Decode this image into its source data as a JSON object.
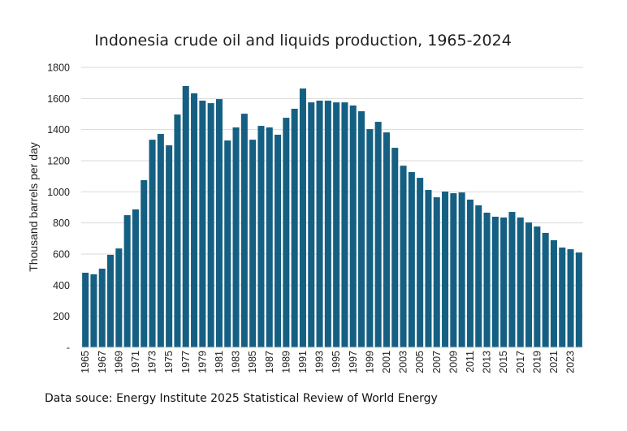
{
  "chart_data": {
    "type": "bar",
    "title": "Indonesia crude oil and liquids production, 1965-2024",
    "xlabel": "",
    "ylabel": "Thousand barrels per day",
    "ylim": [
      0,
      1800
    ],
    "yticks": [
      0,
      200,
      400,
      600,
      800,
      1000,
      1200,
      1400,
      1600,
      1800
    ],
    "ytick_labels": [
      "-",
      "200",
      "400",
      "600",
      "800",
      "1000",
      "1200",
      "1400",
      "1600",
      "1800"
    ],
    "grid": true,
    "legend": "none",
    "bar_color": "#156082",
    "categories": [
      "1965",
      "1966",
      "1967",
      "1968",
      "1969",
      "1970",
      "1971",
      "1972",
      "1973",
      "1974",
      "1975",
      "1976",
      "1977",
      "1978",
      "1979",
      "1980",
      "1981",
      "1982",
      "1983",
      "1984",
      "1985",
      "1986",
      "1987",
      "1988",
      "1989",
      "1990",
      "1991",
      "1992",
      "1993",
      "1994",
      "1995",
      "1996",
      "1997",
      "1998",
      "1999",
      "2000",
      "2001",
      "2002",
      "2003",
      "2004",
      "2005",
      "2006",
      "2007",
      "2008",
      "2009",
      "2010",
      "2011",
      "2012",
      "2013",
      "2014",
      "2015",
      "2016",
      "2017",
      "2018",
      "2019",
      "2020",
      "2021",
      "2022",
      "2023",
      "2024"
    ],
    "xtick_labels": [
      "1965",
      "1967",
      "1969",
      "1971",
      "1973",
      "1975",
      "1977",
      "1979",
      "1981",
      "1983",
      "1985",
      "1987",
      "1989",
      "1991",
      "1993",
      "1995",
      "1997",
      "1999",
      "2001",
      "2003",
      "2005",
      "2007",
      "2009",
      "2011",
      "2013",
      "2015",
      "2017",
      "2019",
      "2021",
      "2023"
    ],
    "values": [
      480,
      470,
      506,
      595,
      636,
      850,
      887,
      1075,
      1335,
      1372,
      1299,
      1497,
      1680,
      1633,
      1586,
      1570,
      1596,
      1330,
      1414,
      1502,
      1335,
      1424,
      1414,
      1367,
      1476,
      1534,
      1664,
      1575,
      1586,
      1586,
      1575,
      1575,
      1555,
      1518,
      1403,
      1450,
      1382,
      1283,
      1168,
      1127,
      1090,
      1012,
      965,
      1002,
      991,
      996,
      950,
      913,
      866,
      840,
      835,
      871,
      835,
      803,
      777,
      736,
      689,
      642,
      631,
      610
    ]
  },
  "footer": {
    "source": "Data souce: Energy Institute 2025 Statistical Review of World Energy"
  }
}
